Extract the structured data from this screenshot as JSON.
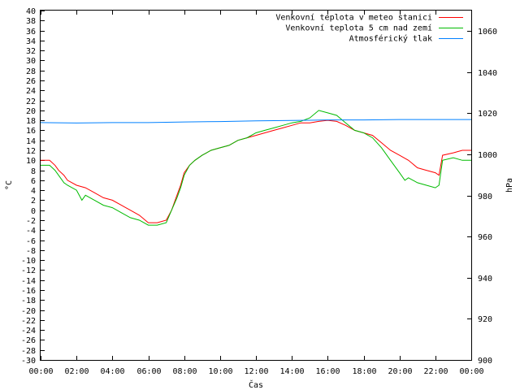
{
  "chart_data": {
    "type": "line",
    "xlabel": "Čas",
    "ylabel_left": "°C",
    "ylabel_right": "hPa",
    "x_ticks": [
      "00:00",
      "02:00",
      "04:00",
      "06:00",
      "08:00",
      "10:00",
      "12:00",
      "14:00",
      "16:00",
      "18:00",
      "20:00",
      "22:00",
      "00:00"
    ],
    "x_range_hours": [
      0,
      24
    ],
    "y_left_range": [
      -30,
      40
    ],
    "y_left_step": 2,
    "y_right_range": [
      900,
      1070
    ],
    "y_right_ticks": [
      900,
      920,
      940,
      960,
      980,
      1000,
      1020,
      1040,
      1060
    ],
    "legend_position": "top-right",
    "grid": false,
    "series": [
      {
        "name": "Venkovní teplota v meteo stanici",
        "axis": "left",
        "color": "#ff0000",
        "points": [
          [
            0,
            10
          ],
          [
            0.5,
            10
          ],
          [
            0.8,
            9
          ],
          [
            1,
            8
          ],
          [
            1.3,
            7
          ],
          [
            1.5,
            6
          ],
          [
            2,
            5
          ],
          [
            2.5,
            4.5
          ],
          [
            3,
            3.5
          ],
          [
            3.5,
            2.5
          ],
          [
            4,
            2
          ],
          [
            4.5,
            1
          ],
          [
            5,
            0
          ],
          [
            5.5,
            -1
          ],
          [
            6,
            -2.5
          ],
          [
            6.5,
            -2.5
          ],
          [
            7,
            -2
          ],
          [
            7.3,
            0
          ],
          [
            7.6,
            3
          ],
          [
            7.8,
            5
          ],
          [
            8,
            7.5
          ],
          [
            8.3,
            9
          ],
          [
            8.6,
            10
          ],
          [
            9,
            11
          ],
          [
            9.5,
            12
          ],
          [
            10,
            12.5
          ],
          [
            10.5,
            13
          ],
          [
            11,
            14
          ],
          [
            11.5,
            14.5
          ],
          [
            12,
            15
          ],
          [
            12.5,
            15.5
          ],
          [
            13,
            16
          ],
          [
            13.5,
            16.5
          ],
          [
            14,
            17
          ],
          [
            14.5,
            17.5
          ],
          [
            15,
            17.5
          ],
          [
            15.5,
            17.8
          ],
          [
            16,
            18
          ],
          [
            16.5,
            17.8
          ],
          [
            17,
            17
          ],
          [
            17.5,
            16
          ],
          [
            18,
            15.5
          ],
          [
            18.5,
            15
          ],
          [
            19,
            13.5
          ],
          [
            19.5,
            12
          ],
          [
            20,
            11
          ],
          [
            20.5,
            10
          ],
          [
            21,
            8.5
          ],
          [
            21.5,
            8
          ],
          [
            22,
            7.5
          ],
          [
            22.2,
            7
          ],
          [
            22.4,
            11
          ],
          [
            23,
            11.5
          ],
          [
            23.5,
            12
          ],
          [
            24,
            12
          ]
        ]
      },
      {
        "name": "Venkovní teplota 5 cm nad zemí",
        "axis": "left",
        "color": "#00bb00",
        "points": [
          [
            0,
            9
          ],
          [
            0.5,
            9
          ],
          [
            0.8,
            8
          ],
          [
            1,
            7
          ],
          [
            1.3,
            5.5
          ],
          [
            1.5,
            5
          ],
          [
            2,
            4
          ],
          [
            2.3,
            2
          ],
          [
            2.5,
            3
          ],
          [
            3,
            2
          ],
          [
            3.5,
            1
          ],
          [
            4,
            0.5
          ],
          [
            4.5,
            -0.5
          ],
          [
            5,
            -1.5
          ],
          [
            5.5,
            -2
          ],
          [
            6,
            -3
          ],
          [
            6.5,
            -3
          ],
          [
            7,
            -2.5
          ],
          [
            7.3,
            0
          ],
          [
            7.6,
            2.5
          ],
          [
            7.8,
            4.5
          ],
          [
            8,
            7
          ],
          [
            8.3,
            9
          ],
          [
            8.6,
            10
          ],
          [
            9,
            11
          ],
          [
            9.5,
            12
          ],
          [
            10,
            12.5
          ],
          [
            10.5,
            13
          ],
          [
            11,
            14
          ],
          [
            11.5,
            14.5
          ],
          [
            12,
            15.5
          ],
          [
            12.5,
            16
          ],
          [
            13,
            16.5
          ],
          [
            13.5,
            17
          ],
          [
            14,
            17.5
          ],
          [
            14.5,
            17.8
          ],
          [
            15,
            18.5
          ],
          [
            15.5,
            20
          ],
          [
            16,
            19.5
          ],
          [
            16.5,
            19
          ],
          [
            17,
            17.5
          ],
          [
            17.5,
            16
          ],
          [
            18,
            15.5
          ],
          [
            18.5,
            14.5
          ],
          [
            19,
            12.5
          ],
          [
            19.5,
            10
          ],
          [
            20,
            7.5
          ],
          [
            20.3,
            6
          ],
          [
            20.5,
            6.5
          ],
          [
            21,
            5.5
          ],
          [
            21.5,
            5
          ],
          [
            22,
            4.5
          ],
          [
            22.2,
            5
          ],
          [
            22.4,
            10
          ],
          [
            23,
            10.5
          ],
          [
            23.5,
            10
          ],
          [
            24,
            10
          ]
        ]
      },
      {
        "name": "Atmosférický tlak",
        "axis": "right",
        "color": "#0080ff",
        "points": [
          [
            0,
            1015.5
          ],
          [
            2,
            1015.3
          ],
          [
            4,
            1015.5
          ],
          [
            6,
            1015.5
          ],
          [
            8,
            1015.8
          ],
          [
            10,
            1016
          ],
          [
            12,
            1016.3
          ],
          [
            14,
            1016.5
          ],
          [
            16,
            1016.8
          ],
          [
            18,
            1016.8
          ],
          [
            20,
            1017
          ],
          [
            22,
            1017
          ],
          [
            24,
            1017
          ]
        ]
      }
    ]
  }
}
